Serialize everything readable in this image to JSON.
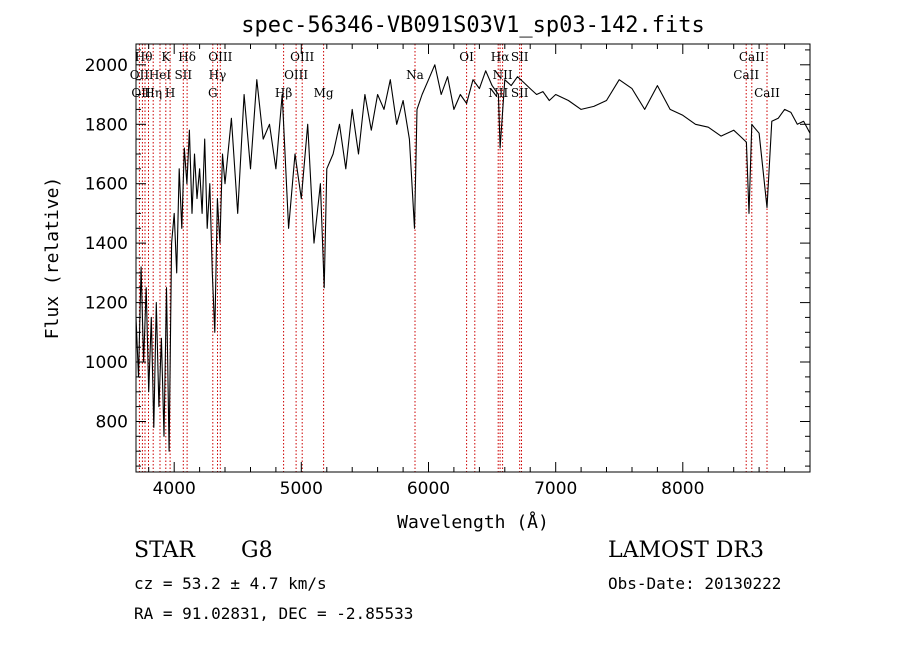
{
  "chart_data": {
    "type": "line",
    "title": "spec-56346-VB091S03V1_sp03-142.fits",
    "xlabel": "Wavelength (Å)",
    "ylabel": "Flux (relative)",
    "xlim": [
      3700,
      9000
    ],
    "ylim": [
      630,
      2070
    ],
    "x_ticks": [
      4000,
      5000,
      6000,
      7000,
      8000
    ],
    "y_ticks": [
      800,
      1000,
      1200,
      1400,
      1600,
      1800,
      2000
    ],
    "series": [
      {
        "name": "flux",
        "x": [
          3700,
          3720,
          3740,
          3760,
          3780,
          3800,
          3820,
          3840,
          3860,
          3880,
          3900,
          3920,
          3940,
          3960,
          3980,
          4000,
          4020,
          4040,
          4060,
          4080,
          4100,
          4120,
          4140,
          4160,
          4180,
          4200,
          4220,
          4240,
          4260,
          4280,
          4300,
          4320,
          4340,
          4360,
          4380,
          4400,
          4450,
          4500,
          4550,
          4600,
          4650,
          4700,
          4750,
          4800,
          4850,
          4900,
          4950,
          5000,
          5050,
          5100,
          5150,
          5180,
          5200,
          5250,
          5300,
          5350,
          5400,
          5450,
          5500,
          5550,
          5600,
          5650,
          5700,
          5750,
          5800,
          5850,
          5890,
          5910,
          5950,
          6000,
          6050,
          6100,
          6150,
          6200,
          6250,
          6300,
          6350,
          6400,
          6450,
          6500,
          6550,
          6563,
          6600,
          6650,
          6700,
          6750,
          6800,
          6850,
          6900,
          6950,
          7000,
          7100,
          7200,
          7300,
          7400,
          7500,
          7600,
          7700,
          7800,
          7900,
          8000,
          8100,
          8200,
          8300,
          8400,
          8450,
          8500,
          8520,
          8542,
          8560,
          8600,
          8662,
          8700,
          8750,
          8800,
          8850,
          8900,
          8950,
          9000
        ],
        "values": [
          1150,
          950,
          1320,
          1000,
          1250,
          900,
          1150,
          780,
          1200,
          850,
          1080,
          750,
          1250,
          700,
          1400,
          1500,
          1300,
          1650,
          1450,
          1720,
          1600,
          1780,
          1500,
          1700,
          1550,
          1650,
          1500,
          1750,
          1450,
          1600,
          1300,
          1100,
          1550,
          1400,
          1700,
          1600,
          1820,
          1500,
          1900,
          1650,
          1950,
          1750,
          1800,
          1650,
          1900,
          1450,
          1700,
          1550,
          1800,
          1400,
          1600,
          1250,
          1650,
          1700,
          1800,
          1650,
          1850,
          1700,
          1900,
          1780,
          1900,
          1850,
          1950,
          1800,
          1880,
          1750,
          1450,
          1850,
          1900,
          1950,
          2000,
          1900,
          1960,
          1850,
          1900,
          1870,
          1950,
          1920,
          1980,
          1930,
          1900,
          1720,
          1950,
          1930,
          1960,
          1940,
          1920,
          1900,
          1910,
          1880,
          1900,
          1880,
          1850,
          1860,
          1880,
          1950,
          1920,
          1850,
          1930,
          1850,
          1830,
          1800,
          1790,
          1760,
          1780,
          1760,
          1740,
          1500,
          1800,
          1790,
          1770,
          1520,
          1810,
          1820,
          1850,
          1840,
          1800,
          1810,
          1770
        ]
      }
    ],
    "line_markers": [
      {
        "x": 3727,
        "label": "OII"
      },
      {
        "x": 3750,
        "label": "OII"
      },
      {
        "x": 3771,
        "label": "Hθ"
      },
      {
        "x": 3798,
        "label": "Hη"
      },
      {
        "x": 3835,
        "label": "Hη"
      },
      {
        "x": 3889,
        "label": "HeI"
      },
      {
        "x": 3934,
        "label": "K"
      },
      {
        "x": 3968,
        "label": "H"
      },
      {
        "x": 4072,
        "label": "SII"
      },
      {
        "x": 4102,
        "label": "Hδ"
      },
      {
        "x": 4304,
        "label": "G"
      },
      {
        "x": 4341,
        "label": "Hγ"
      },
      {
        "x": 4363,
        "label": "OIII"
      },
      {
        "x": 4861,
        "label": "Hβ"
      },
      {
        "x": 4959,
        "label": "OIII"
      },
      {
        "x": 5007,
        "label": "OIII"
      },
      {
        "x": 5175,
        "label": "Mg"
      },
      {
        "x": 5894,
        "label": "Na"
      },
      {
        "x": 6300,
        "label": "OI"
      },
      {
        "x": 6364,
        "label": "OI"
      },
      {
        "x": 6548,
        "label": "NII"
      },
      {
        "x": 6563,
        "label": "Hα"
      },
      {
        "x": 6583,
        "label": "NII"
      },
      {
        "x": 6717,
        "label": "SII"
      },
      {
        "x": 6731,
        "label": "SII"
      },
      {
        "x": 8498,
        "label": "CaII"
      },
      {
        "x": 8542,
        "label": "CaII"
      },
      {
        "x": 8662,
        "label": "CaII"
      }
    ],
    "marker_labels": [
      {
        "text": "Hθ",
        "x": 3760,
        "row": 1
      },
      {
        "text": "K",
        "x": 3934,
        "row": 1
      },
      {
        "text": "Hδ",
        "x": 4102,
        "row": 1
      },
      {
        "text": "OII",
        "x": 3727,
        "row": 2
      },
      {
        "text": "HeI",
        "x": 3889,
        "row": 2
      },
      {
        "text": "SII",
        "x": 4072,
        "row": 2
      },
      {
        "text": "OII",
        "x": 3740,
        "row": 3
      },
      {
        "text": "Hη",
        "x": 3835,
        "row": 3
      },
      {
        "text": "H",
        "x": 3968,
        "row": 3
      },
      {
        "text": "OIII",
        "x": 4363,
        "row": 1
      },
      {
        "text": "Hγ",
        "x": 4341,
        "row": 2
      },
      {
        "text": "G",
        "x": 4304,
        "row": 3
      },
      {
        "text": "OIII",
        "x": 5007,
        "row": 1
      },
      {
        "text": "OIII",
        "x": 4959,
        "row": 2
      },
      {
        "text": "Hβ",
        "x": 4861,
        "row": 3
      },
      {
        "text": "Mg",
        "x": 5175,
        "row": 3
      },
      {
        "text": "Na",
        "x": 5894,
        "row": 2
      },
      {
        "text": "OI",
        "x": 6300,
        "row": 1
      },
      {
        "text": "Hα",
        "x": 6563,
        "row": 1
      },
      {
        "text": "SII",
        "x": 6717,
        "row": 1
      },
      {
        "text": "NII",
        "x": 6583,
        "row": 2
      },
      {
        "text": "NII",
        "x": 6548,
        "row": 3
      },
      {
        "text": "SII",
        "x": 6717,
        "row": 3
      },
      {
        "text": "CaII",
        "x": 8542,
        "row": 1
      },
      {
        "text": "CaII",
        "x": 8498,
        "row": 2
      },
      {
        "text": "CaII",
        "x": 8662,
        "row": 3
      }
    ],
    "line_color": "#000000",
    "marker_color": "#cc0000"
  },
  "info": {
    "object_class": "STAR",
    "subclass": "G8",
    "survey": "LAMOST DR3",
    "redshift": "cz = 53.2 ± 4.7 km/s",
    "obs_date": "Obs-Date: 20130222",
    "coords": "RA =  91.02831, DEC =  -2.85533"
  }
}
